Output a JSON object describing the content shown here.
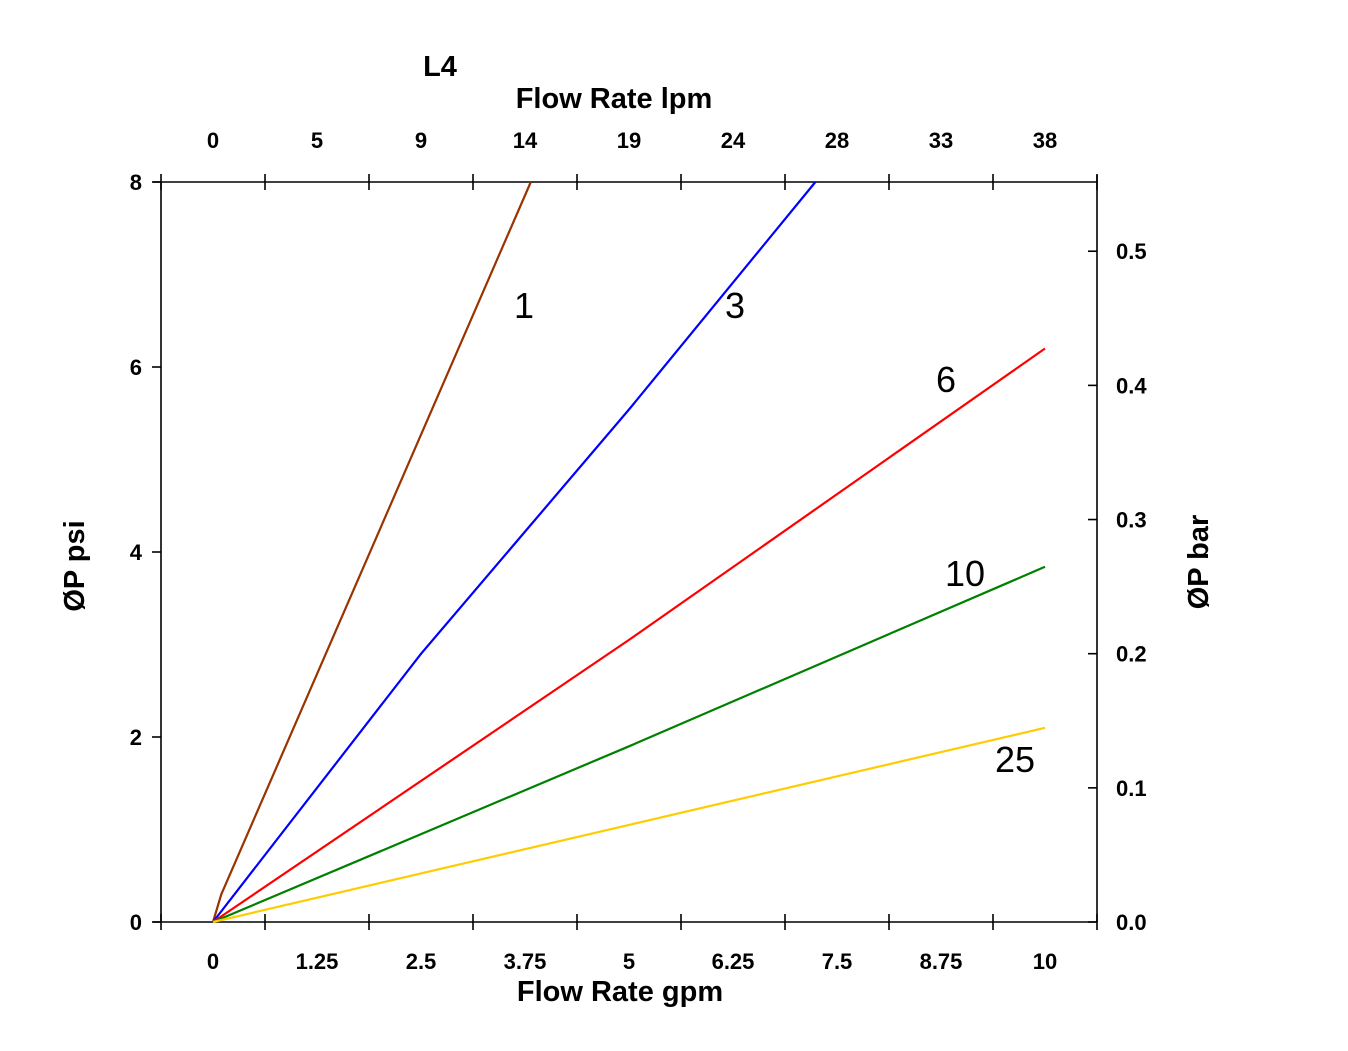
{
  "chart_data": {
    "type": "line",
    "title": "L4",
    "xlabel": "Flow Rate gpm",
    "x2label": "Flow Rate lpm",
    "ylabel": "ØP psi",
    "y2label": "ØP bar",
    "xlim": [
      -0.625,
      10.625
    ],
    "ylim": [
      0,
      8
    ],
    "y2lim": [
      0,
      0.5516
    ],
    "x_ticks": [
      0,
      1.25,
      2.5,
      3.75,
      5,
      6.25,
      7.5,
      8.75,
      10
    ],
    "x_tick_labels": [
      "0",
      "1.25",
      "2.5",
      "3.75",
      "5",
      "6.25",
      "7.5",
      "8.75",
      "10"
    ],
    "x2_tick_labels": [
      "0",
      "5",
      "9",
      "14",
      "19",
      "24",
      "28",
      "33",
      "38"
    ],
    "y_ticks": [
      0,
      2,
      4,
      6,
      8
    ],
    "y_tick_labels": [
      "0",
      "2",
      "4",
      "6",
      "8"
    ],
    "y2_ticks": [
      0.0,
      0.1,
      0.2,
      0.3,
      0.4,
      0.5
    ],
    "y2_tick_labels": [
      "0.0",
      "0.1",
      "0.2",
      "0.3",
      "0.4",
      "0.5"
    ],
    "grid": false,
    "series": [
      {
        "name": "1",
        "color": "#993300",
        "x": [
          0,
          0.1,
          3.82
        ],
        "y": [
          0,
          0.3,
          8
        ]
      },
      {
        "name": "3",
        "color": "#0000ff",
        "x": [
          0,
          2.5,
          5,
          7.24
        ],
        "y": [
          0,
          2.9,
          5.54,
          8
        ]
      },
      {
        "name": "6",
        "color": "#ff0000",
        "x": [
          0,
          5,
          10
        ],
        "y": [
          0,
          3.05,
          6.2
        ]
      },
      {
        "name": "10",
        "color": "#008000",
        "x": [
          0,
          5,
          10
        ],
        "y": [
          0,
          1.9,
          3.84
        ]
      },
      {
        "name": "25",
        "color": "#ffcc00",
        "x": [
          0,
          5,
          10
        ],
        "y": [
          0,
          1.05,
          2.1
        ]
      }
    ]
  }
}
